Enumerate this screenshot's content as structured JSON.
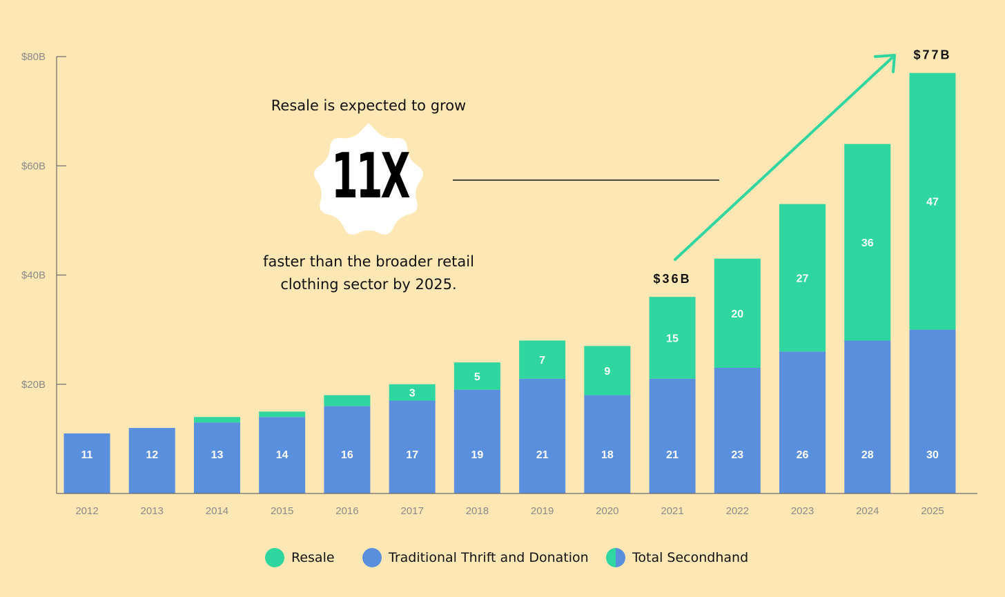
{
  "chart_data": {
    "type": "bar",
    "stacked": true,
    "categories": [
      "2012",
      "2013",
      "2014",
      "2015",
      "2016",
      "2017",
      "2018",
      "2019",
      "2020",
      "2021",
      "2022",
      "2023",
      "2024",
      "2025"
    ],
    "series": [
      {
        "name": "Traditional Thrift and Donation",
        "color": "#5a8fde",
        "values": [
          11,
          12,
          13,
          14,
          16,
          17,
          19,
          21,
          18,
          21,
          23,
          26,
          28,
          30
        ],
        "labels": [
          "11",
          "12",
          "13",
          "14",
          "16",
          "17",
          "19",
          "21",
          "18",
          "21",
          "23",
          "26",
          "28",
          "30"
        ]
      },
      {
        "name": "Resale",
        "color": "#2fd6a0",
        "values": [
          0,
          0,
          1,
          1,
          2,
          3,
          5,
          7,
          9,
          15,
          20,
          27,
          36,
          47
        ],
        "labels": [
          "",
          "",
          "",
          "",
          "",
          "3",
          "5",
          "7",
          "9",
          "15",
          "20",
          "27",
          "36",
          "47"
        ]
      }
    ],
    "yticks": [
      {
        "value": 20,
        "label": "$20B"
      },
      {
        "value": 40,
        "label": "$40B"
      },
      {
        "value": 60,
        "label": "$60B"
      },
      {
        "value": 80,
        "label": "$80B"
      }
    ],
    "ylim": [
      0,
      80
    ],
    "callouts": [
      {
        "category": "2021",
        "text": "$36B"
      },
      {
        "category": "2025",
        "text": "$77B"
      }
    ],
    "trend_arrow_color": "#2fd6a0",
    "legend": [
      {
        "label": "Resale",
        "color": "#2fd6a0",
        "style": "solid"
      },
      {
        "label": "Traditional Thrift and Donation",
        "color": "#5a8fde",
        "style": "solid"
      },
      {
        "label": "Total Secondhand",
        "color": "#2fd6a0",
        "color2": "#5a8fde",
        "style": "split"
      }
    ],
    "legend_position": "bottom"
  },
  "annotation": {
    "line1": "Resale is expected to grow",
    "multiplier": "11X",
    "line2": "faster than the broader retail",
    "line3": "clothing sector by 2025."
  }
}
